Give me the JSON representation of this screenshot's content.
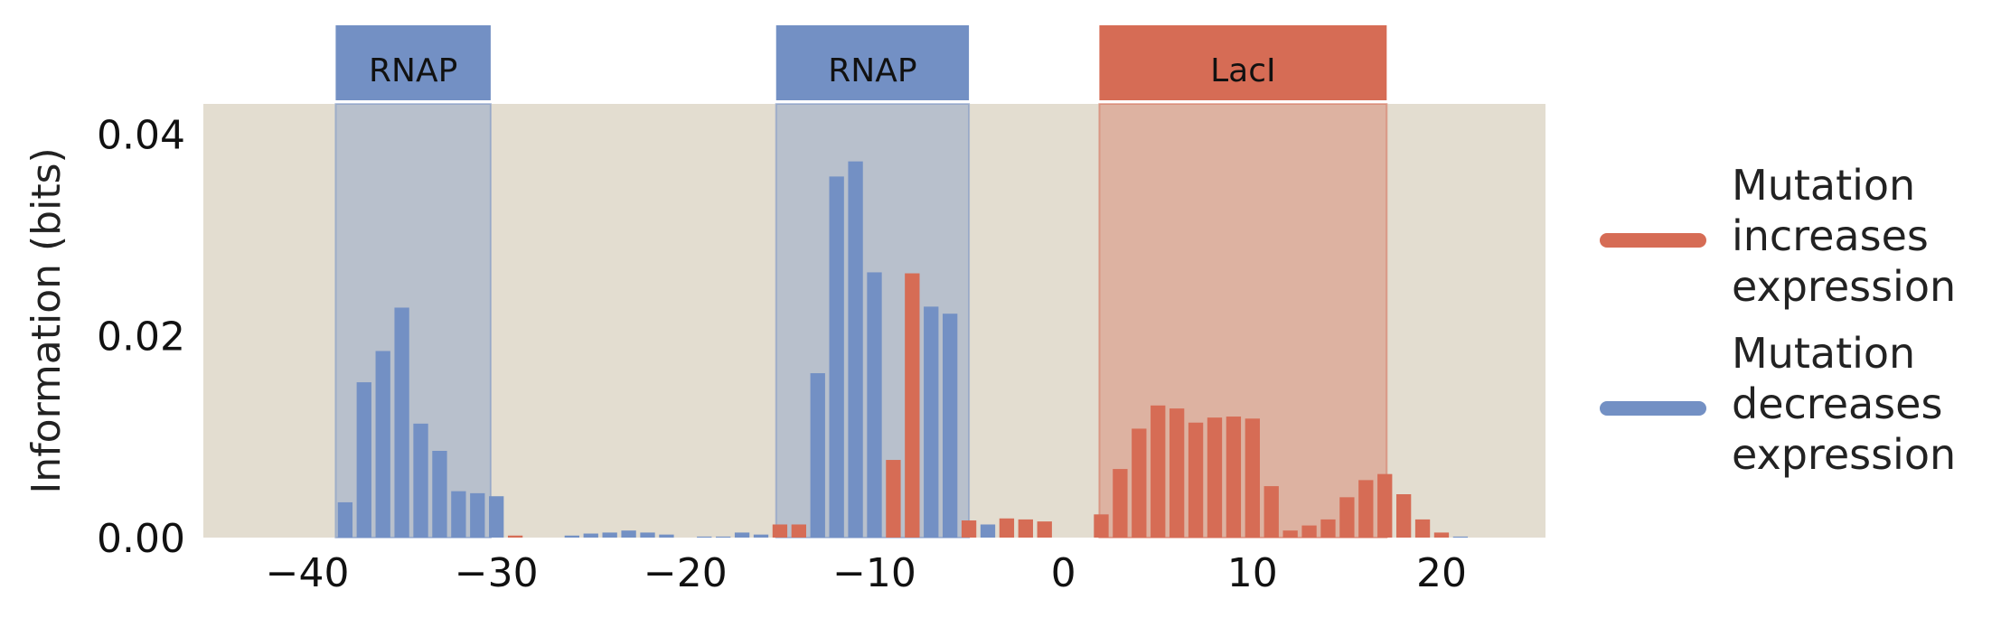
{
  "chart_data": {
    "type": "bar",
    "title": "",
    "xlabel": "",
    "ylabel": "Information (bits)",
    "xlim": [
      -45.5,
      25.5
    ],
    "ylim": [
      0,
      0.043
    ],
    "xticks": [
      -40,
      -30,
      -20,
      -10,
      0,
      10,
      20
    ],
    "xtick_labels": [
      "−40",
      "−30",
      "−20",
      "−10",
      "0",
      "10",
      "20"
    ],
    "yticks": [
      0.0,
      0.02,
      0.04
    ],
    "ytick_labels": [
      "0.00",
      "0.02",
      "0.04"
    ],
    "grid": false,
    "legend_position": "right",
    "colors": {
      "increase": "#d66c55",
      "decrease": "#7390c4",
      "plot_background": "#e3ddd0"
    },
    "regions": [
      {
        "label": "RNAP",
        "x_start": -38.5,
        "x_end": -30.3,
        "series": "decrease"
      },
      {
        "label": "RNAP",
        "x_start": -15.2,
        "x_end": -5.0,
        "series": "decrease"
      },
      {
        "label": "LacI",
        "x_start": 1.9,
        "x_end": 17.1,
        "series": "increase"
      }
    ],
    "series": [
      {
        "key": "increase",
        "name": "Mutation increases expression",
        "x": [
          -29,
          -15,
          -14,
          -9,
          -8,
          -5,
          -3,
          -2,
          -1,
          2,
          3,
          4,
          5,
          6,
          7,
          8,
          9,
          10,
          11,
          12,
          13,
          14,
          15,
          16,
          17,
          18,
          19,
          20
        ],
        "values": [
          0.0002,
          0.0013,
          0.0013,
          0.0077,
          0.0262,
          0.0017,
          0.0019,
          0.0018,
          0.0016,
          0.0023,
          0.0068,
          0.0108,
          0.0131,
          0.0128,
          0.0114,
          0.0119,
          0.012,
          0.0118,
          0.0051,
          0.0007,
          0.0012,
          0.0018,
          0.004,
          0.0057,
          0.0063,
          0.0043,
          0.0018,
          0.0005
        ]
      },
      {
        "key": "decrease",
        "name": "Mutation decreases expression",
        "x": [
          -38,
          -37,
          -36,
          -35,
          -34,
          -33,
          -32,
          -31,
          -30,
          -26,
          -25,
          -24,
          -23,
          -22,
          -21,
          -19,
          -18,
          -17,
          -16,
          -13,
          -12,
          -11,
          -10,
          -7,
          -6,
          -4,
          21
        ],
        "values": [
          0.0035,
          0.0154,
          0.0185,
          0.0228,
          0.0113,
          0.0086,
          0.0046,
          0.0044,
          0.0041,
          0.0002,
          0.0004,
          0.0005,
          0.0007,
          0.0005,
          0.0003,
          0.0001,
          0.0001,
          0.0005,
          0.0003,
          0.0163,
          0.0358,
          0.0373,
          0.0263,
          0.0229,
          0.0222,
          0.0013,
          0.0001
        ]
      }
    ]
  },
  "legend": {
    "increase": [
      "Mutation",
      "increases",
      "expression"
    ],
    "decrease": [
      "Mutation",
      "decreases",
      "expression"
    ]
  }
}
